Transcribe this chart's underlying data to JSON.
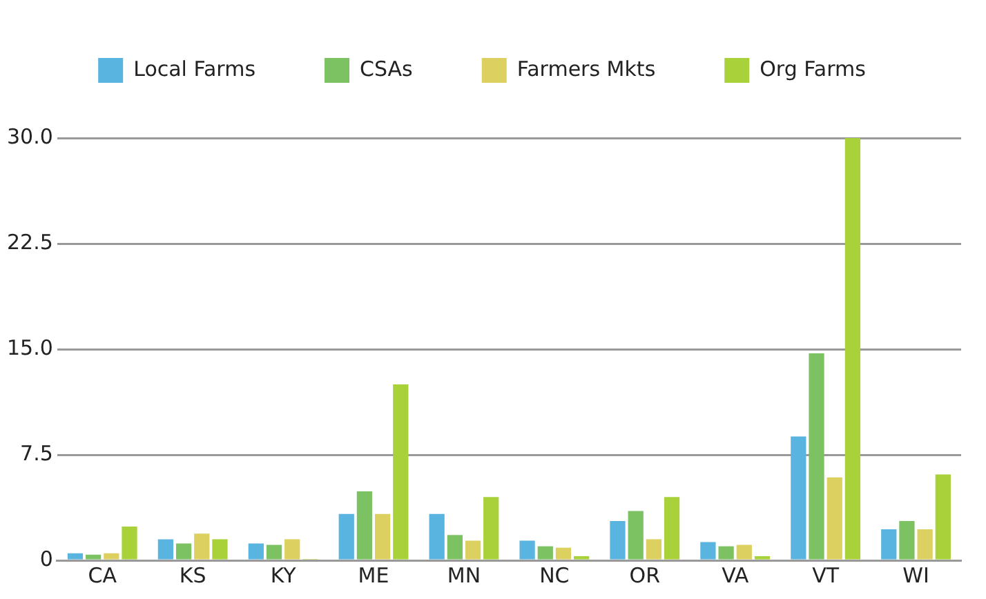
{
  "chart_data": {
    "type": "bar",
    "categories": [
      "CA",
      "KS",
      "KY",
      "ME",
      "MN",
      "NC",
      "OR",
      "VA",
      "VT",
      "WI"
    ],
    "series": [
      {
        "name": "Local Farms",
        "color": "#5ab4e0",
        "values": [
          0.5,
          1.5,
          1.2,
          3.3,
          3.3,
          1.4,
          2.8,
          1.3,
          8.8,
          2.2
        ]
      },
      {
        "name": "CSAs",
        "color": "#7cc263",
        "values": [
          0.4,
          1.2,
          1.1,
          4.9,
          1.8,
          1.0,
          3.5,
          1.0,
          14.7,
          2.8
        ]
      },
      {
        "name": "Farmers Mkts",
        "color": "#dcd060",
        "values": [
          0.5,
          1.9,
          1.5,
          3.3,
          1.4,
          0.9,
          1.5,
          1.1,
          5.9,
          2.2
        ]
      },
      {
        "name": "Org Farms",
        "color": "#a8d13a",
        "values": [
          2.4,
          1.5,
          0.1,
          12.5,
          4.5,
          0.3,
          4.5,
          0.3,
          30.0,
          6.1
        ]
      }
    ],
    "ylim": [
      0,
      30
    ],
    "yticks": [
      0,
      {
        "value": 7.5,
        "label": "7.5"
      },
      {
        "value": 15,
        "label": "15.0"
      },
      {
        "value": 22.5,
        "label": "22.5"
      },
      {
        "value": 30,
        "label": "30.0"
      }
    ],
    "grid": "y",
    "legend": "top"
  }
}
